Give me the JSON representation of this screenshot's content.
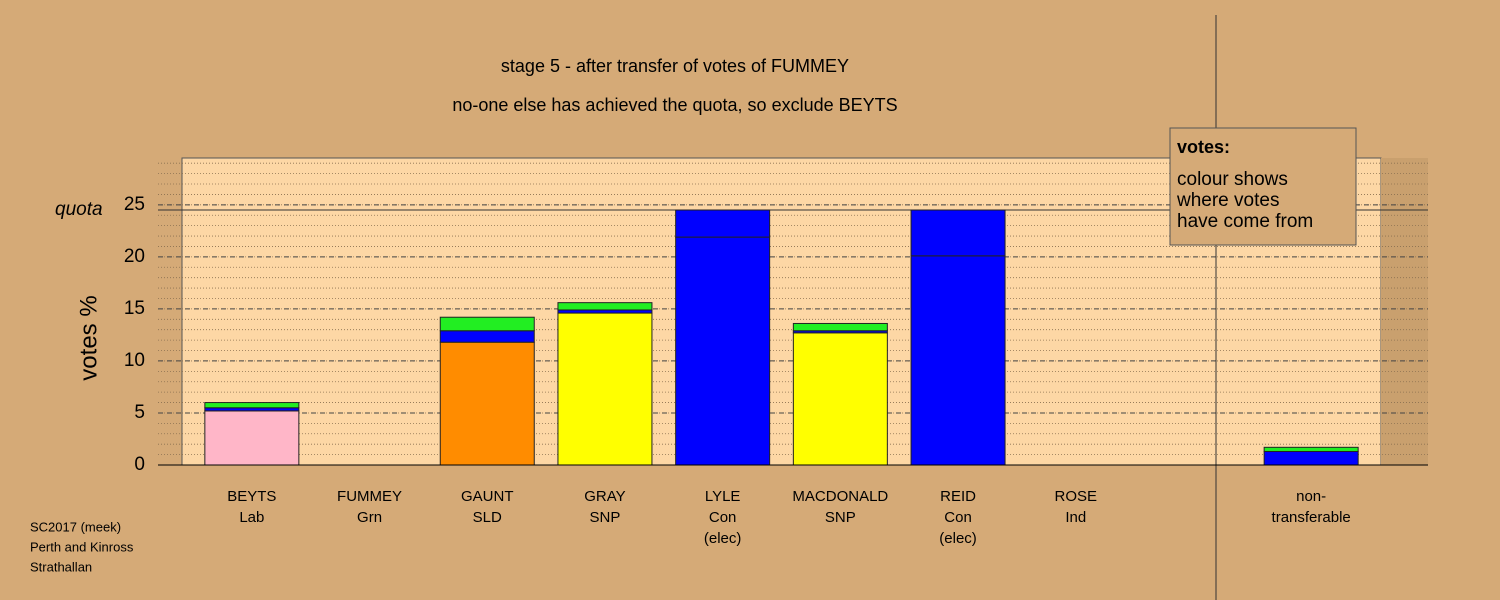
{
  "chart_data": {
    "type": "bar",
    "title": "stage 5 - after transfer of votes of FUMMEY",
    "subtitle": "no-one else has achieved the quota, so exclude BEYTS",
    "y_label": "votes %",
    "categories": [
      [
        "BEYTS",
        "Lab"
      ],
      [
        "FUMMEY",
        "Grn"
      ],
      [
        "GAUNT",
        "SLD"
      ],
      [
        "GRAY",
        "SNP"
      ],
      [
        "LYLE",
        "Con",
        "(elec)"
      ],
      [
        "MACDONALD",
        "SNP"
      ],
      [
        "REID",
        "Con",
        "(elec)"
      ],
      [
        "ROSE",
        "Ind"
      ],
      [
        "non-",
        "transferable"
      ]
    ],
    "series": [
      {
        "colors": [
          "#ffb6c8",
          "#00cc00",
          "#ff8c00",
          "#ffff00",
          "#0000ff",
          "#ffff00",
          "#0000ff",
          "#888888",
          "#0000ff"
        ],
        "values": [
          5.2,
          0,
          11.8,
          14.6,
          21.9,
          12.7,
          20.1,
          0,
          0
        ]
      },
      {
        "color": "#0000ff",
        "values": [
          0.3,
          0,
          1.1,
          0.3,
          2.6,
          0.2,
          4.4,
          0,
          1.3
        ]
      },
      {
        "color": "#22ee22",
        "values": [
          0.5,
          0,
          1.3,
          0.7,
          0,
          0.7,
          0,
          0,
          0.4
        ]
      }
    ],
    "quota": {
      "label": "quota",
      "value": 24.5
    },
    "ylim": [
      0,
      29.5
    ],
    "yticks": [
      0,
      5,
      10,
      15,
      20,
      25
    ],
    "minor_step": 1,
    "grid": true,
    "legend": {
      "title": "votes:",
      "lines": [
        "colour shows",
        "where votes",
        "have come from"
      ]
    },
    "footer": [
      "SC2017 (meek)",
      "Perth and Kinross",
      "Strathallan"
    ]
  }
}
